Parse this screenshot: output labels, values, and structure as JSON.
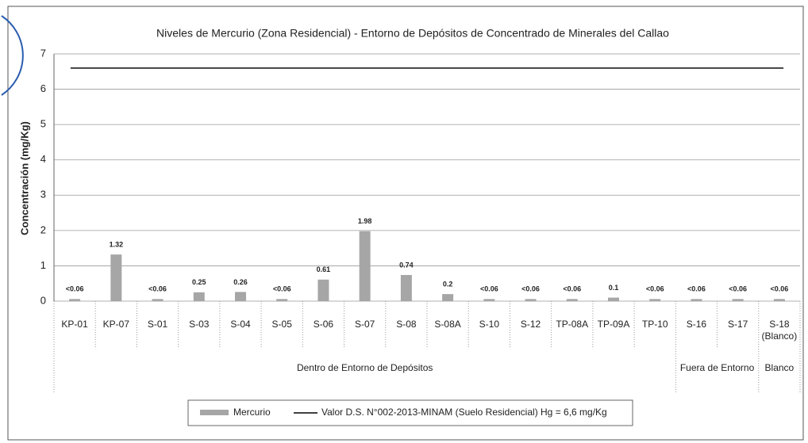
{
  "chart_data": {
    "type": "bar",
    "title": "Niveles de Mercurio (Zona Residencial) - Entorno de Depósitos de Concentrado de Minerales del Callao",
    "y_label": "Concentración (mg/Kg)",
    "categories": [
      "KP-01",
      "KP-07",
      "S-01",
      "S-03",
      "S-04",
      "S-05",
      "S-06",
      "S-07",
      "S-08",
      "S-08A",
      "S-10",
      "S-12",
      "TP-08A",
      "TP-09A",
      "TP-10",
      "S-16",
      "S-17",
      "S-18 (Blanco)"
    ],
    "series": [
      {
        "name": "Mercurio",
        "color": "#a6a6a6",
        "values": [
          0.06,
          1.32,
          0.06,
          0.25,
          0.26,
          0.06,
          0.61,
          1.98,
          0.74,
          0.2,
          0.06,
          0.06,
          0.06,
          0.1,
          0.06,
          0.06,
          0.06,
          0.06
        ],
        "value_labels": [
          "<0.06",
          "1.32",
          "<0.06",
          "0.25",
          "0.26",
          "<0.06",
          "0.61",
          "1.98",
          "0.74",
          "0.2",
          "<0.06",
          "<0.06",
          "<0.06",
          "0.1",
          "<0.06",
          "<0.06",
          "<0.06",
          "<0.06"
        ]
      }
    ],
    "reference_line": {
      "name": "Valor D.S. N°002-2013-MINAM (Suelo Residencial) Hg = 6,6 mg/Kg",
      "value": 6.6,
      "color": "#404040"
    },
    "groups": [
      {
        "label": "Dentro de Entorno de Depósitos",
        "count": 15
      },
      {
        "label": "Fuera de Entorno",
        "count": 2
      },
      {
        "label": "Blanco",
        "count": 1
      }
    ],
    "ylim": [
      0,
      7
    ],
    "yticks": [
      0,
      1,
      2,
      3,
      4,
      5,
      6,
      7
    ],
    "grid": true
  }
}
